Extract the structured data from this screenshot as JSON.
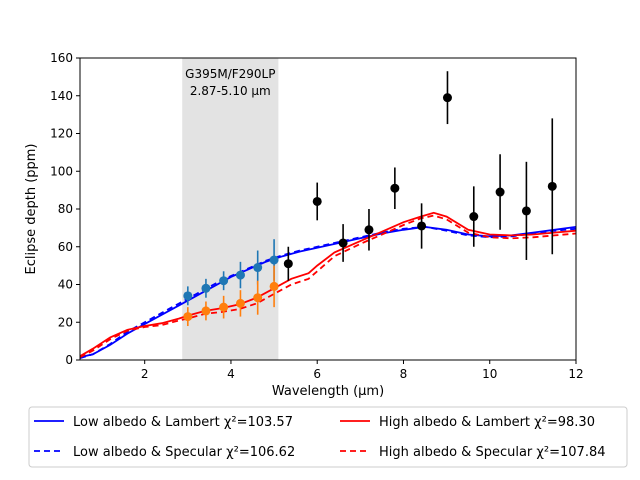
{
  "chart_data": {
    "type": "line",
    "title": "",
    "xlabel": "Wavelength (μm)",
    "ylabel": "Eclipse depth (ppm)",
    "xlim": [
      0.5,
      12
    ],
    "ylim": [
      0,
      160
    ],
    "xticks": [
      2,
      4,
      6,
      8,
      10,
      12
    ],
    "yticks": [
      0,
      20,
      40,
      60,
      80,
      100,
      120,
      140,
      160
    ],
    "grid": false,
    "legend_position": "below-plot",
    "band": {
      "x_start": 2.87,
      "x_end": 5.1,
      "label_line1": "G395M/F290LP",
      "label_line2": "2.87-5.10 μm",
      "color": "#e3e3e3"
    },
    "series": [
      {
        "name": "Low albedo & Lambert χ²=103.57",
        "color": "#0000ff",
        "dash": "solid",
        "x": [
          0.5,
          0.8,
          1.2,
          1.6,
          2.0,
          2.4,
          2.8,
          3.2,
          3.6,
          4.0,
          4.4,
          4.8,
          5.2,
          5.6,
          6.0,
          6.5,
          7.0,
          7.5,
          8.0,
          8.5,
          9.0,
          9.5,
          10.0,
          10.5,
          11.0,
          11.5,
          12.0
        ],
        "y": [
          1.5,
          3,
          8,
          14,
          19,
          24,
          29,
          34,
          39,
          44,
          48,
          52,
          55,
          57.5,
          59.5,
          62,
          64.5,
          67,
          69,
          70.5,
          69,
          66.5,
          65.5,
          66,
          67.5,
          69,
          70.5
        ]
      },
      {
        "name": "Low albedo & Specular χ²=106.62",
        "color": "#0000ff",
        "dash": "dashed",
        "x": [
          0.5,
          0.8,
          1.2,
          1.6,
          2.0,
          2.4,
          2.8,
          3.2,
          3.6,
          4.0,
          4.4,
          4.8,
          5.2,
          5.6,
          6.0,
          6.5,
          7.0,
          7.5,
          8.0,
          8.5,
          9.0,
          9.5,
          10.0,
          10.5,
          11.0,
          11.5,
          12.0
        ],
        "y": [
          1,
          3,
          8.5,
          15,
          20,
          25,
          30,
          35,
          40,
          44.5,
          48.5,
          52.5,
          55.5,
          58,
          60,
          62.5,
          65,
          67.5,
          69.5,
          70.5,
          68.5,
          66,
          65,
          65.5,
          67,
          68.5,
          69.5
        ]
      },
      {
        "name": "High albedo & Lambert χ²=98.30",
        "color": "#ff0000",
        "dash": "solid",
        "x": [
          0.5,
          0.8,
          1.2,
          1.6,
          2.0,
          2.4,
          2.8,
          3.0,
          3.4,
          3.8,
          4.2,
          4.6,
          5.0,
          5.4,
          5.8,
          6.0,
          6.4,
          7.0,
          7.5,
          8.0,
          8.4,
          8.7,
          9.0,
          9.5,
          10.0,
          10.5,
          11.0,
          11.5,
          12.0
        ],
        "y": [
          2,
          6,
          12,
          16,
          18,
          19.5,
          22,
          23.5,
          26,
          27.5,
          29.5,
          33,
          38,
          43,
          46,
          50,
          57,
          63,
          68,
          73,
          76,
          78,
          76,
          69,
          66.5,
          66,
          66.5,
          67.5,
          68.5
        ]
      },
      {
        "name": "High albedo & Specular χ²=107.84",
        "color": "#ff0000",
        "dash": "dashed",
        "x": [
          0.5,
          0.8,
          1.2,
          1.6,
          2.0,
          2.4,
          2.8,
          3.0,
          3.4,
          3.8,
          4.2,
          4.6,
          5.0,
          5.4,
          5.8,
          6.0,
          6.4,
          7.0,
          7.5,
          8.0,
          8.4,
          8.7,
          9.0,
          9.5,
          10.0,
          10.5,
          11.0,
          11.5,
          12.0
        ],
        "y": [
          1.5,
          5,
          11,
          15.5,
          17.5,
          18.5,
          21,
          22,
          24.5,
          25.5,
          27,
          30,
          35,
          40,
          43,
          47,
          55,
          61.5,
          66.5,
          71.5,
          75,
          76.5,
          74.5,
          67.5,
          65,
          64.5,
          65,
          66,
          67
        ]
      }
    ],
    "points": [
      {
        "color": "#1f77b4",
        "x": [
          3.0,
          3.42,
          3.83,
          4.22,
          4.62,
          5.0
        ],
        "y": [
          34,
          38,
          42,
          45,
          49,
          53
        ],
        "err": [
          5,
          5,
          5,
          7,
          9,
          11
        ]
      },
      {
        "color": "#ff7f0e",
        "x": [
          3.0,
          3.42,
          3.83,
          4.22,
          4.62,
          5.0
        ],
        "y": [
          23,
          26,
          28,
          30,
          33,
          39
        ],
        "err": [
          5,
          5,
          6,
          7,
          9,
          11
        ]
      },
      {
        "color": "#000000",
        "x": [
          5.33,
          6.0,
          6.6,
          7.2,
          7.8,
          8.42,
          9.02,
          9.63,
          10.24,
          10.85,
          11.45
        ],
        "y": [
          51,
          84,
          62,
          69,
          91,
          71,
          139,
          76,
          89,
          79,
          92
        ],
        "err": [
          9,
          10,
          10,
          11,
          11,
          12,
          14,
          16,
          20,
          26,
          36
        ]
      }
    ],
    "legend": [
      {
        "label": "Low albedo & Lambert χ²=103.57",
        "color": "#0000ff",
        "dash": "solid"
      },
      {
        "label": "High albedo & Lambert χ²=98.30",
        "color": "#ff0000",
        "dash": "solid"
      },
      {
        "label": "Low albedo & Specular χ²=106.62",
        "color": "#0000ff",
        "dash": "dashed"
      },
      {
        "label": "High albedo & Specular χ²=107.84",
        "color": "#ff0000",
        "dash": "dashed"
      }
    ]
  }
}
